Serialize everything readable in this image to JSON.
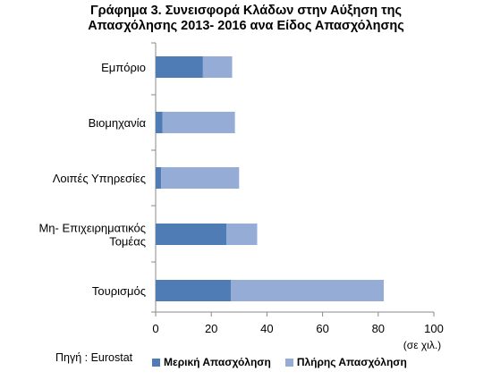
{
  "chart_data": {
    "type": "bar",
    "orientation": "horizontal",
    "stacked": true,
    "title_line1": "Γράφημα 3. Συνεισφορά Κλάδων στην Αύξηση της",
    "title_line2": "Απασχόλησης 2013- 2016 ανα Είδος Απασχόλησης",
    "categories": [
      [
        "Εμπόριο"
      ],
      [
        "Βιομηχανία"
      ],
      [
        "Λοιπές Υπηρεσίες"
      ],
      [
        "Μη- Επιχειρηματικός",
        "Τομέας"
      ],
      [
        "Τουρισμός"
      ]
    ],
    "series": [
      {
        "name": "Μερική Απασχόληση",
        "values": [
          17,
          2.5,
          2,
          25.5,
          27
        ],
        "color": "#4F7CB4"
      },
      {
        "name": "Πλήρης Απασχόληση",
        "values": [
          10.5,
          26,
          28,
          11,
          55
        ],
        "color": "#95ADD6"
      }
    ],
    "xlim": [
      0,
      100
    ],
    "xticks": [
      "0",
      "20",
      "40",
      "60",
      "80",
      "100"
    ],
    "xunit": "(σε χιλ.)",
    "grid": false,
    "legend_position": "bottom"
  },
  "source": "Πηγή : Eurostat"
}
